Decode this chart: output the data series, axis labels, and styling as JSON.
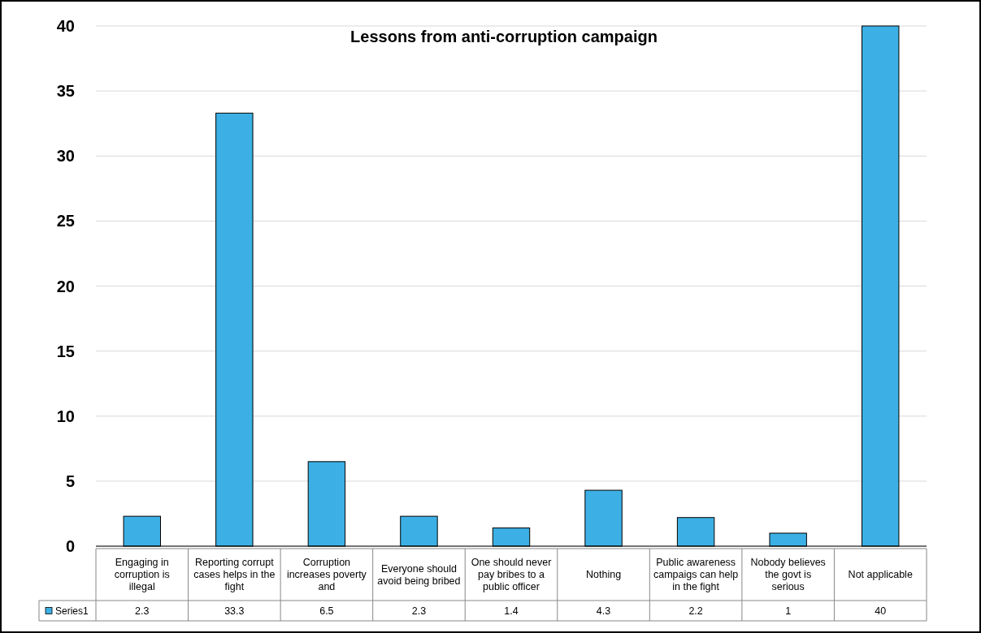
{
  "chart_data": {
    "type": "bar",
    "title": "Lessons from anti-corruption campaign",
    "categories": [
      "Engaging in corruption is illegal",
      "Reporting corrupt cases helps in the fight",
      "Corruption increases poverty and",
      "Everyone should avoid being bribed",
      "One should never pay bribes to a public officer",
      "Nothing",
      "Public awareness campaigs can help in the fight",
      "Nobody believes the govt is serious",
      "Not applicable"
    ],
    "series": [
      {
        "name": "Series1",
        "color": "#3cb0e4",
        "values": [
          2.3,
          33.3,
          6.5,
          2.3,
          1.4,
          4.3,
          2.2,
          1,
          40
        ]
      }
    ],
    "ylim": [
      0,
      40
    ],
    "yticks": [
      0,
      5,
      10,
      15,
      20,
      25,
      30,
      35,
      40
    ],
    "grid": "y",
    "legend": "bottom",
    "data_labels": true
  }
}
